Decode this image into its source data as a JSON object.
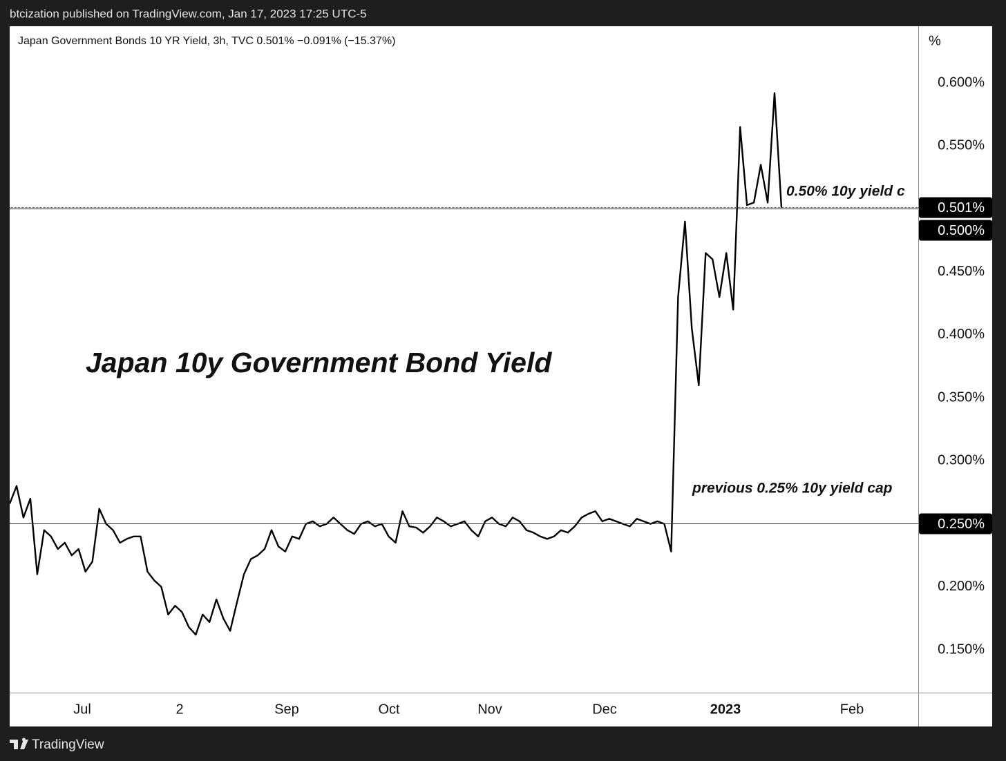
{
  "header": {
    "text": "btcization published on TradingView.com, Jan 17, 2023 17:25 UTC-5"
  },
  "footer": {
    "brand": "TradingView"
  },
  "chart_data": {
    "type": "line",
    "legend_text": "Japan Government Bonds 10 YR Yield, 3h, TVC  0.501%  −0.091% (−15.37%)",
    "title": "Japan 10y Government Bond Yield",
    "y_unit": "%",
    "annotations": [
      "0.50% 10y yield c",
      "previous 0.25% 10y yield cap"
    ],
    "xtick_labels": [
      "Jul",
      "2",
      "Sep",
      "Oct",
      "Nov",
      "Dec",
      "2023",
      "Feb"
    ],
    "color": "#000000",
    "values": [
      0.266,
      0.28,
      0.255,
      0.27,
      0.21,
      0.245,
      0.24,
      0.23,
      0.235,
      0.225,
      0.23,
      0.212,
      0.22,
      0.262,
      0.25,
      0.245,
      0.235,
      0.238,
      0.24,
      0.24,
      0.212,
      0.205,
      0.2,
      0.178,
      0.185,
      0.18,
      0.168,
      0.162,
      0.178,
      0.172,
      0.19,
      0.175,
      0.165,
      0.188,
      0.21,
      0.222,
      0.225,
      0.23,
      0.245,
      0.232,
      0.228,
      0.24,
      0.238,
      0.25,
      0.252,
      0.248,
      0.25,
      0.255,
      0.25,
      0.245,
      0.242,
      0.25,
      0.252,
      0.248,
      0.25,
      0.24,
      0.235,
      0.26,
      0.248,
      0.247,
      0.243,
      0.248,
      0.255,
      0.252,
      0.248,
      0.25,
      0.252,
      0.245,
      0.24,
      0.252,
      0.255,
      0.25,
      0.248,
      0.255,
      0.252,
      0.245,
      0.243,
      0.24,
      0.238,
      0.24,
      0.245,
      0.243,
      0.248,
      0.255,
      0.258,
      0.26,
      0.252,
      0.254,
      0.252,
      0.25,
      0.248,
      0.254,
      0.252,
      0.25,
      0.252,
      0.25,
      0.228,
      0.43,
      0.49,
      0.405,
      0.36,
      0.465,
      0.46,
      0.43,
      0.465,
      0.42,
      0.565,
      0.503,
      0.505,
      0.535,
      0.505,
      0.592,
      0.501
    ],
    "ylim": [
      0.116,
      0.645
    ],
    "yticks": [
      {
        "value": 0.15,
        "label": "0.150%"
      },
      {
        "value": 0.2,
        "label": "0.200%"
      },
      {
        "value": 0.25,
        "label": "0.250%"
      },
      {
        "value": 0.3,
        "label": "0.300%"
      },
      {
        "value": 0.35,
        "label": "0.350%"
      },
      {
        "value": 0.4,
        "label": "0.400%"
      },
      {
        "value": 0.45,
        "label": "0.450%"
      },
      {
        "value": 0.5,
        "label": "0.500%"
      },
      {
        "value": 0.55,
        "label": "0.550%"
      },
      {
        "value": 0.6,
        "label": "0.600%"
      }
    ],
    "hlines": [
      {
        "value": 0.501,
        "label": "0.501%"
      },
      {
        "value": 0.5,
        "label": "0.500%"
      },
      {
        "value": 0.25,
        "label": "0.250%"
      }
    ]
  }
}
